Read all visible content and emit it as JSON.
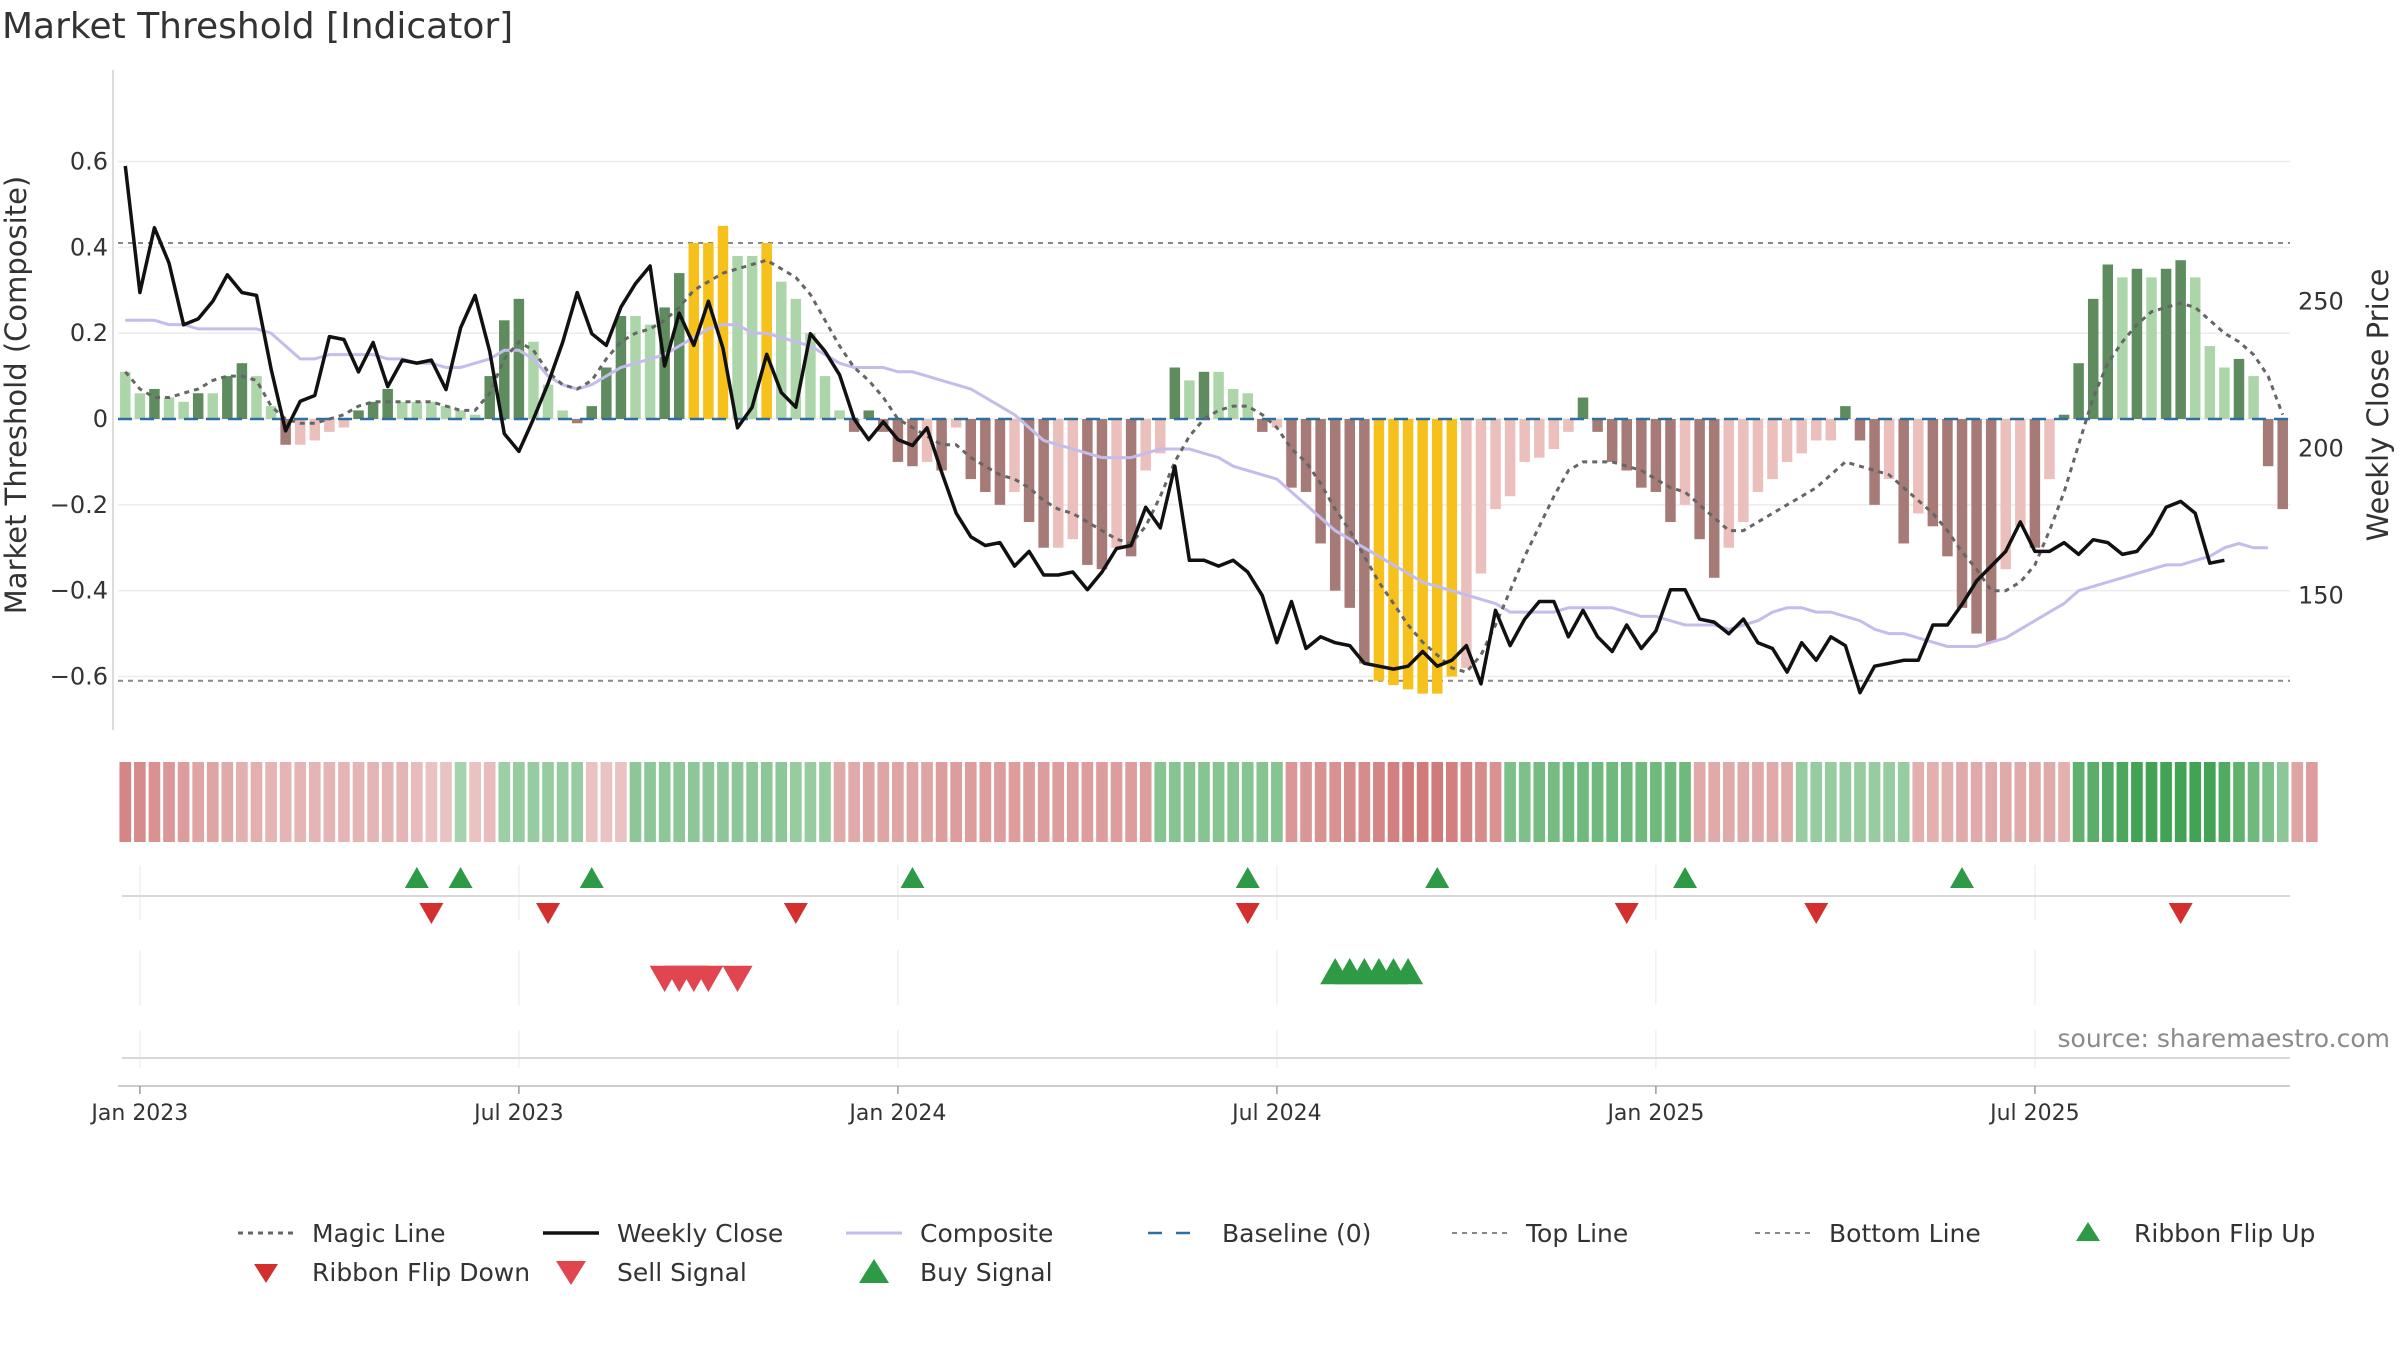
{
  "chart_data": {
    "type": "bar",
    "title": "Market Threshold [Indicator]",
    "ylabel_left": "Market Threshold (Composite)",
    "ylabel_right": "Weekly Close Price",
    "source": "source: sharemaestro.com",
    "ylim_left": [
      -0.72,
      0.72
    ],
    "ylim_right": [
      105,
      315
    ],
    "yticks_left": [
      {
        "v": 0.6,
        "t": "0.6"
      },
      {
        "v": 0.4,
        "t": "0.4"
      },
      {
        "v": 0.2,
        "t": "0.2"
      },
      {
        "v": 0,
        "t": "0"
      },
      {
        "v": -0.2,
        "t": "−0.2"
      },
      {
        "v": -0.4,
        "t": "−0.4"
      },
      {
        "v": -0.6,
        "t": "−0.6"
      }
    ],
    "yticks_right": [
      {
        "v": 250,
        "t": "250"
      },
      {
        "v": 200,
        "t": "200"
      },
      {
        "v": 150,
        "t": "150"
      }
    ],
    "top_line": 0.41,
    "bottom_line": -0.61,
    "x_start_week": -1,
    "x_ticks": [
      {
        "w": 0,
        "t": "Jan 2023"
      },
      {
        "w": 26,
        "t": "Jul 2023"
      },
      {
        "w": 52,
        "t": "Jan 2024"
      },
      {
        "w": 78,
        "t": "Jul 2024"
      },
      {
        "w": 104,
        "t": "Jan 2025"
      },
      {
        "w": 130,
        "t": "Jul 2025"
      }
    ],
    "bar_values": [
      0.11,
      0.06,
      0.07,
      0.05,
      0.04,
      0.06,
      0.06,
      0.1,
      0.13,
      0.1,
      0.03,
      -0.06,
      -0.06,
      -0.05,
      -0.03,
      -0.02,
      0.02,
      0.04,
      0.07,
      0.04,
      0.04,
      0.04,
      0.03,
      0.02,
      0.01,
      0.1,
      0.23,
      0.28,
      0.18,
      0.08,
      0.02,
      -0.01,
      0.03,
      0.12,
      0.24,
      0.24,
      0.22,
      0.26,
      0.34,
      0.41,
      0.41,
      0.45,
      0.38,
      0.38,
      0.41,
      0.32,
      0.28,
      0.2,
      0.1,
      0.02,
      -0.03,
      0.02,
      -0.03,
      -0.1,
      -0.11,
      -0.1,
      -0.12,
      -0.02,
      -0.14,
      -0.17,
      -0.2,
      -0.17,
      -0.24,
      -0.3,
      -0.3,
      -0.28,
      -0.34,
      -0.35,
      -0.3,
      -0.32,
      -0.12,
      -0.08,
      0.12,
      0.09,
      0.11,
      0.11,
      0.07,
      0.06,
      -0.03,
      -0.02,
      -0.16,
      -0.17,
      -0.29,
      -0.4,
      -0.44,
      -0.57,
      -0.61,
      -0.62,
      -0.63,
      -0.64,
      -0.64,
      -0.6,
      -0.58,
      -0.36,
      -0.21,
      -0.18,
      -0.1,
      -0.09,
      -0.07,
      -0.03,
      0.05,
      -0.03,
      -0.1,
      -0.12,
      -0.16,
      -0.17,
      -0.24,
      -0.2,
      -0.28,
      -0.37,
      -0.3,
      -0.24,
      -0.17,
      -0.14,
      -0.1,
      -0.08,
      -0.05,
      -0.05,
      0.03,
      -0.05,
      -0.2,
      -0.14,
      -0.29,
      -0.22,
      -0.25,
      -0.32,
      -0.44,
      -0.5,
      -0.52,
      -0.35,
      -0.25,
      -0.3,
      -0.14,
      0.01,
      0.13,
      0.28,
      0.36,
      0.33,
      0.35,
      0.33,
      0.35,
      0.37,
      0.33,
      0.17,
      0.12,
      0.14,
      0.1,
      -0.11,
      -0.21
    ],
    "magic_line": [
      0.11,
      0.07,
      0.05,
      0.05,
      0.06,
      0.07,
      0.09,
      0.1,
      0.1,
      0.09,
      0.03,
      0.0,
      -0.01,
      -0.01,
      0.0,
      0.01,
      0.03,
      0.04,
      0.04,
      0.04,
      0.04,
      0.04,
      0.03,
      0.02,
      0.02,
      0.06,
      0.14,
      0.18,
      0.16,
      0.11,
      0.08,
      0.07,
      0.09,
      0.14,
      0.18,
      0.2,
      0.21,
      0.23,
      0.26,
      0.3,
      0.32,
      0.34,
      0.35,
      0.36,
      0.37,
      0.35,
      0.33,
      0.29,
      0.23,
      0.17,
      0.12,
      0.09,
      0.05,
      0.0,
      -0.02,
      -0.04,
      -0.06,
      -0.06,
      -0.09,
      -0.11,
      -0.13,
      -0.14,
      -0.16,
      -0.19,
      -0.21,
      -0.22,
      -0.24,
      -0.26,
      -0.28,
      -0.29,
      -0.25,
      -0.18,
      -0.1,
      -0.04,
      0.0,
      0.02,
      0.03,
      0.03,
      0.01,
      -0.02,
      -0.07,
      -0.1,
      -0.15,
      -0.21,
      -0.26,
      -0.32,
      -0.38,
      -0.43,
      -0.48,
      -0.52,
      -0.55,
      -0.58,
      -0.59,
      -0.55,
      -0.48,
      -0.4,
      -0.32,
      -0.25,
      -0.18,
      -0.12,
      -0.1,
      -0.1,
      -0.1,
      -0.11,
      -0.12,
      -0.14,
      -0.16,
      -0.17,
      -0.2,
      -0.23,
      -0.26,
      -0.26,
      -0.24,
      -0.22,
      -0.2,
      -0.18,
      -0.16,
      -0.13,
      -0.1,
      -0.11,
      -0.12,
      -0.13,
      -0.16,
      -0.19,
      -0.22,
      -0.26,
      -0.31,
      -0.35,
      -0.4,
      -0.4,
      -0.38,
      -0.34,
      -0.26,
      -0.17,
      -0.06,
      0.05,
      0.13,
      0.18,
      0.22,
      0.25,
      0.26,
      0.27,
      0.26,
      0.23,
      0.2,
      0.18,
      0.15,
      0.1,
      0.01
    ],
    "composite_line": [
      0.23,
      0.23,
      0.23,
      0.22,
      0.22,
      0.21,
      0.21,
      0.21,
      0.21,
      0.21,
      0.2,
      0.17,
      0.14,
      0.14,
      0.15,
      0.15,
      0.15,
      0.15,
      0.14,
      0.14,
      0.13,
      0.13,
      0.12,
      0.12,
      0.13,
      0.14,
      0.16,
      0.16,
      0.14,
      0.1,
      0.08,
      0.07,
      0.08,
      0.1,
      0.12,
      0.13,
      0.14,
      0.15,
      0.17,
      0.19,
      0.21,
      0.22,
      0.22,
      0.2,
      0.2,
      0.19,
      0.18,
      0.17,
      0.15,
      0.13,
      0.12,
      0.12,
      0.12,
      0.11,
      0.11,
      0.1,
      0.09,
      0.08,
      0.07,
      0.05,
      0.03,
      0.01,
      -0.02,
      -0.05,
      -0.06,
      -0.07,
      -0.08,
      -0.09,
      -0.09,
      -0.09,
      -0.08,
      -0.07,
      -0.07,
      -0.07,
      -0.08,
      -0.09,
      -0.11,
      -0.12,
      -0.13,
      -0.14,
      -0.17,
      -0.2,
      -0.23,
      -0.26,
      -0.28,
      -0.3,
      -0.32,
      -0.34,
      -0.36,
      -0.38,
      -0.39,
      -0.4,
      -0.41,
      -0.42,
      -0.43,
      -0.45,
      -0.45,
      -0.45,
      -0.45,
      -0.44,
      -0.44,
      -0.44,
      -0.44,
      -0.45,
      -0.46,
      -0.46,
      -0.47,
      -0.48,
      -0.48,
      -0.48,
      -0.49,
      -0.48,
      -0.47,
      -0.45,
      -0.44,
      -0.44,
      -0.45,
      -0.45,
      -0.46,
      -0.47,
      -0.49,
      -0.5,
      -0.5,
      -0.51,
      -0.52,
      -0.53,
      -0.53,
      -0.53,
      -0.52,
      -0.51,
      -0.49,
      -0.47,
      -0.45,
      -0.43,
      -0.4,
      -0.39,
      -0.38,
      -0.37,
      -0.36,
      -0.35,
      -0.34,
      -0.34,
      -0.33,
      -0.32,
      -0.3,
      -0.29,
      -0.3,
      -0.3
    ],
    "weekly_close": [
      296,
      253,
      275,
      263,
      242,
      244,
      250,
      259,
      253,
      252,
      227,
      206,
      216,
      218,
      238,
      237,
      226,
      236,
      221,
      230,
      229,
      230,
      220,
      241,
      252,
      233,
      205,
      199,
      210,
      222,
      236,
      253,
      239,
      235,
      248,
      256,
      262,
      228,
      246,
      235,
      250,
      234,
      207,
      214,
      232,
      219,
      214,
      239,
      233,
      225,
      210,
      203,
      209,
      203,
      201,
      207,
      192,
      178,
      170,
      167,
      168,
      160,
      165,
      157,
      157,
      158,
      152,
      158,
      166,
      167,
      180,
      173,
      194,
      162,
      162,
      160,
      162,
      158,
      150,
      134,
      148,
      132,
      136,
      134,
      133,
      127,
      126,
      125,
      126,
      131,
      126,
      128,
      133,
      120,
      145,
      133,
      142,
      148,
      148,
      136,
      145,
      136,
      131,
      140,
      132,
      138,
      152,
      152,
      142,
      141,
      137,
      142,
      134,
      132,
      124,
      134,
      128,
      136,
      133,
      117,
      126,
      127,
      128,
      128,
      140,
      140,
      147,
      155,
      160,
      165,
      175,
      165,
      165,
      168,
      164,
      169,
      168,
      164,
      165,
      171,
      180,
      182,
      178,
      161,
      162
    ],
    "ribbon_values": [
      -0.7,
      -0.65,
      -0.6,
      -0.55,
      -0.5,
      -0.45,
      -0.45,
      -0.4,
      -0.35,
      -0.35,
      -0.3,
      -0.3,
      -0.3,
      -0.3,
      -0.3,
      -0.3,
      -0.3,
      -0.3,
      -0.3,
      -0.3,
      -0.25,
      -0.2,
      -0.2,
      0.25,
      -0.2,
      -0.25,
      0.3,
      0.35,
      0.35,
      0.35,
      0.35,
      0.35,
      -0.2,
      -0.2,
      -0.2,
      0.4,
      0.4,
      0.4,
      0.4,
      0.4,
      0.4,
      0.4,
      0.4,
      0.4,
      0.4,
      0.4,
      0.35,
      0.35,
      0.35,
      -0.4,
      -0.4,
      -0.45,
      -0.45,
      -0.45,
      -0.45,
      -0.45,
      -0.5,
      -0.5,
      -0.5,
      -0.5,
      -0.5,
      -0.5,
      -0.5,
      -0.5,
      -0.5,
      -0.5,
      -0.5,
      -0.5,
      -0.5,
      -0.5,
      -0.5,
      0.45,
      0.45,
      0.45,
      0.45,
      0.45,
      0.45,
      0.45,
      0.45,
      0.45,
      -0.55,
      -0.55,
      -0.6,
      -0.6,
      -0.65,
      -0.65,
      -0.7,
      -0.75,
      -0.8,
      -0.8,
      -0.8,
      -0.75,
      -0.7,
      -0.65,
      -0.6,
      0.5,
      0.5,
      0.55,
      0.55,
      0.6,
      0.6,
      0.6,
      0.6,
      0.6,
      0.6,
      0.6,
      0.6,
      0.6,
      -0.4,
      -0.4,
      -0.4,
      -0.4,
      -0.4,
      -0.4,
      -0.4,
      0.35,
      0.35,
      0.35,
      0.35,
      0.35,
      0.35,
      0.35,
      0.35,
      -0.35,
      -0.35,
      -0.35,
      -0.4,
      -0.4,
      -0.4,
      -0.4,
      -0.4,
      -0.4,
      -0.4,
      -0.35,
      0.7,
      0.75,
      0.8,
      0.85,
      0.9,
      0.9,
      0.9,
      0.9,
      0.9,
      0.9,
      0.8,
      0.7,
      0.6,
      0.5,
      0.4,
      -0.45,
      -0.5
    ],
    "ribbon_flip_up_weeks": [
      19,
      22,
      31,
      53,
      76,
      89,
      106,
      125
    ],
    "ribbon_flip_down_weeks": [
      20,
      28,
      45,
      76,
      102,
      115,
      140
    ],
    "sell_signal_weeks": [
      36,
      37,
      38,
      39,
      41
    ],
    "buy_signal_weeks": [
      82,
      83,
      84,
      85,
      86,
      87
    ],
    "legend": [
      {
        "key": "magic",
        "label": "Magic Line"
      },
      {
        "key": "close",
        "label": "Weekly Close"
      },
      {
        "key": "composite",
        "label": "Composite"
      },
      {
        "key": "baseline",
        "label": "Baseline (0)"
      },
      {
        "key": "top",
        "label": "Top Line"
      },
      {
        "key": "bottom",
        "label": "Bottom Line"
      },
      {
        "key": "flipup",
        "label": "Ribbon Flip Up"
      },
      {
        "key": "flipdown",
        "label": "Ribbon Flip Down"
      },
      {
        "key": "sell",
        "label": "Sell Signal"
      },
      {
        "key": "buy",
        "label": "Buy Signal"
      }
    ]
  },
  "colors": {
    "strong_pos": "#5e8c5e",
    "weak_pos": "#acd6a9",
    "strong_neg": "#a67a76",
    "weak_neg": "#ebbfbb",
    "extreme": "#f6c11b",
    "magic": "#666666",
    "close": "#111111",
    "composite": "#c4bdeb",
    "baseline": "#2f6f9f",
    "threshold": "#888888",
    "flip_up": "#2e9a45",
    "flip_down": "#d32f2f",
    "sell": "#e04550",
    "buy": "#2e9a45"
  }
}
